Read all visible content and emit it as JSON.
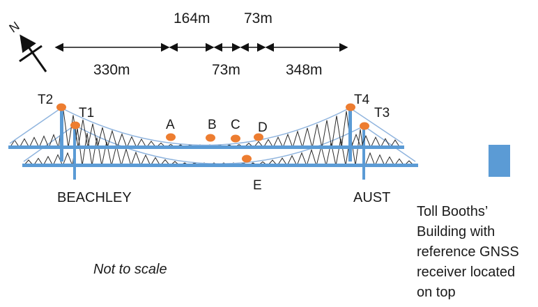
{
  "compass": {
    "north_label": "N"
  },
  "dimensions": {
    "top": [
      "164m",
      "73m"
    ],
    "bottom": [
      "330m",
      "73m",
      "348m"
    ]
  },
  "towers": [
    "T2",
    "T1",
    "T4",
    "T3"
  ],
  "points": [
    "A",
    "B",
    "C",
    "D",
    "E"
  ],
  "places": {
    "west": "BEACHLEY",
    "east": "AUST"
  },
  "note": "Not to scale",
  "toll_booths": {
    "lines": [
      "Toll Booths’",
      "Building with",
      "reference GNSS",
      "receiver located",
      "on top"
    ]
  },
  "colors": {
    "deck": "#5b9bd5",
    "marker": "#ed7d31",
    "building": "#5b9bd5",
    "truss": "#2b2b2b",
    "cable": "#8fb4de"
  }
}
